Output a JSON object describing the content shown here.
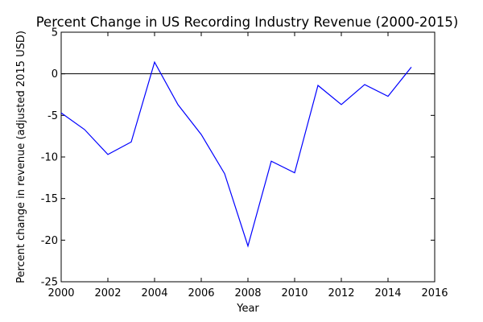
{
  "chart_data": {
    "type": "line",
    "title": "Percent Change in US Recording Industry Revenue (2000-2015)",
    "xlabel": "Year",
    "ylabel": "Percent change in revenue (adjusted 2015 USD)",
    "xlim": [
      2000,
      2016
    ],
    "ylim": [
      -25,
      5
    ],
    "x_ticks": [
      2000,
      2002,
      2004,
      2006,
      2008,
      2010,
      2012,
      2014,
      2016
    ],
    "y_ticks": [
      5,
      0,
      -5,
      -10,
      -15,
      -20,
      -25
    ],
    "reference_line_y": 0,
    "grid": false,
    "series": [
      {
        "color": "#0000ff",
        "x": [
          2000,
          2001,
          2002,
          2003,
          2004,
          2005,
          2006,
          2007,
          2008,
          2009,
          2010,
          2011,
          2012,
          2013,
          2014,
          2015
        ],
        "y": [
          -4.7,
          -6.7,
          -9.7,
          -8.2,
          1.4,
          -3.7,
          -7.3,
          -12.0,
          -20.7,
          -10.5,
          -11.9,
          -1.4,
          -3.7,
          -1.3,
          -2.7,
          0.8
        ]
      }
    ]
  }
}
